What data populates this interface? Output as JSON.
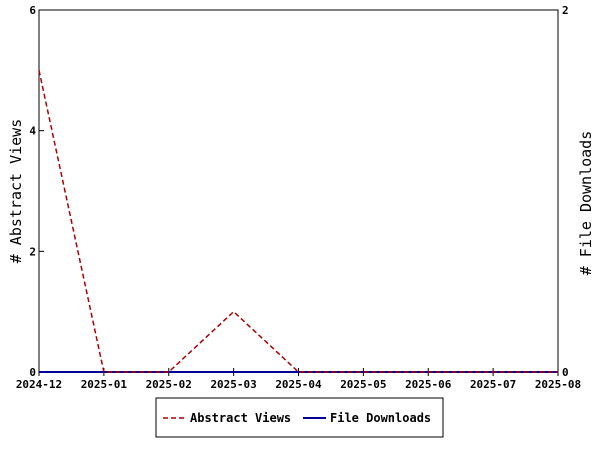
{
  "chart_data": {
    "type": "line",
    "title": "",
    "x": [
      "2024-12",
      "2025-01",
      "2025-02",
      "2025-03",
      "2025-04",
      "2025-05",
      "2025-06",
      "2025-07",
      "2025-08"
    ],
    "series": [
      {
        "name": "Abstract Views",
        "axis": "left",
        "color": "#aa0000",
        "dash": "dashed",
        "values": [
          5,
          0,
          0,
          1,
          0,
          0,
          0,
          0,
          0
        ]
      },
      {
        "name": "File Downloads",
        "axis": "right",
        "color": "#000099",
        "dash": "solid",
        "values": [
          0,
          0,
          0,
          0,
          0,
          0,
          0,
          0,
          0
        ]
      }
    ],
    "ylabel_left": "# Abstract Views",
    "ylabel_right": "# File Downloads",
    "ylim_left": [
      0,
      6
    ],
    "ylim_right": [
      0,
      2
    ],
    "yticks_left": [
      "0",
      "2",
      "4",
      "6"
    ],
    "yticks_right": [
      "0",
      "2"
    ],
    "grid": false,
    "legend": "bottom-center"
  }
}
